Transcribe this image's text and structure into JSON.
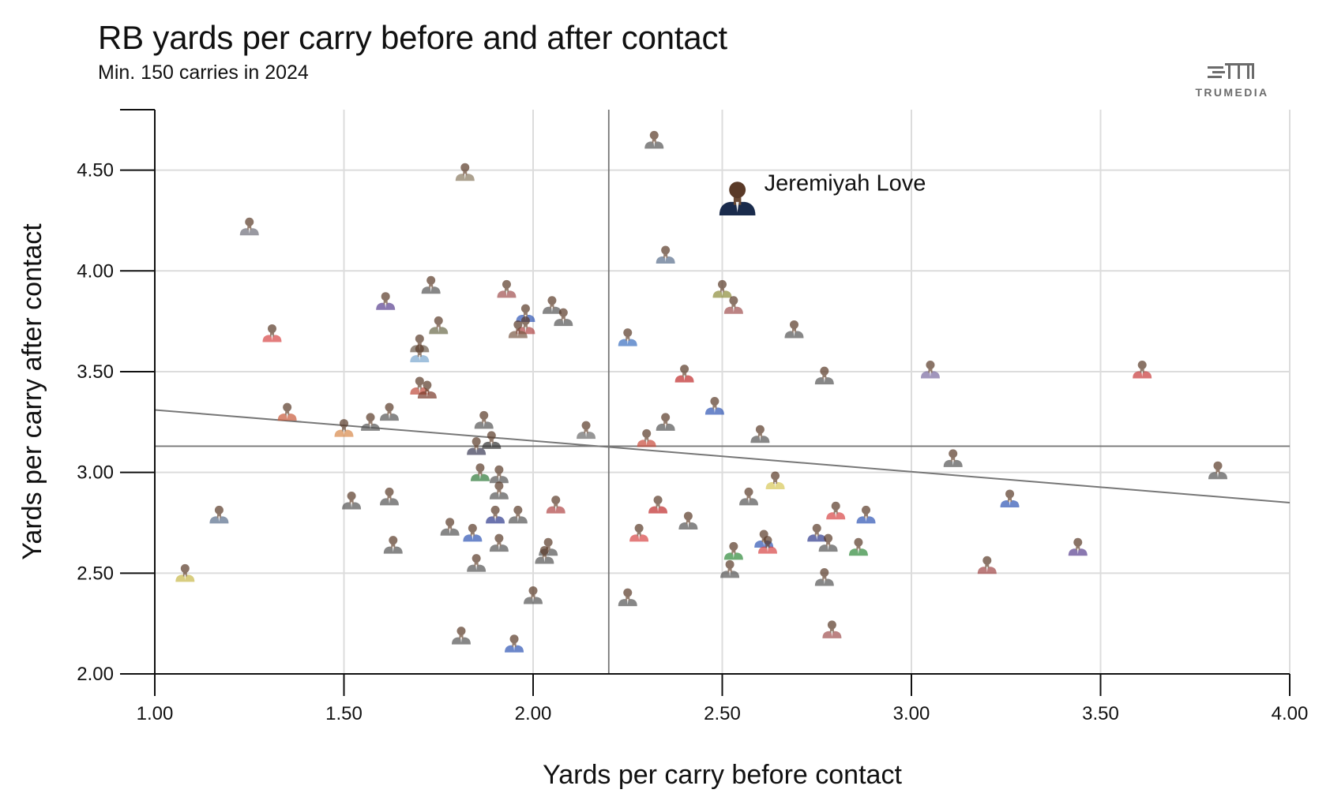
{
  "title": "RB yards per carry before and after contact",
  "subtitle": "Min. 150 carries in 2024",
  "brand": {
    "name": "TRUMEDIA",
    "logo": "trumedia-logo"
  },
  "chart_data": {
    "type": "scatter",
    "title": "RB yards per carry before and after contact",
    "subtitle": "Min. 150 carries in 2024",
    "xlabel": "Yards per carry before contact",
    "ylabel": "Yards per carry after contact",
    "xlim": [
      1.0,
      4.0
    ],
    "ylim": [
      2.0,
      4.8
    ],
    "xticks": [
      "1.00",
      "1.50",
      "2.00",
      "2.50",
      "3.00",
      "3.50",
      "4.00"
    ],
    "yticks": [
      "2.00",
      "2.50",
      "3.00",
      "3.50",
      "4.00",
      "4.50"
    ],
    "grid": true,
    "mean_lines": {
      "x": 2.2,
      "y": 3.13
    },
    "trend_line": {
      "x": [
        1.0,
        4.0
      ],
      "y": [
        3.31,
        2.85
      ]
    },
    "highlight": {
      "name": "Jeremiyah Love",
      "x": 2.54,
      "y": 4.32,
      "color": "#1a2b4c"
    },
    "marker_style": "player-headshot",
    "points": [
      {
        "x": 2.32,
        "y": 4.63,
        "color": "#555555"
      },
      {
        "x": 1.82,
        "y": 4.47,
        "color": "#8a7a60"
      },
      {
        "x": 1.25,
        "y": 4.2,
        "color": "#6f6f7a"
      },
      {
        "x": 2.35,
        "y": 4.06,
        "color": "#5a6e8c"
      },
      {
        "x": 1.73,
        "y": 3.91,
        "color": "#555555"
      },
      {
        "x": 1.93,
        "y": 3.89,
        "color": "#a05050"
      },
      {
        "x": 2.5,
        "y": 3.89,
        "color": "#8c8c3a"
      },
      {
        "x": 1.61,
        "y": 3.83,
        "color": "#5a3f8f"
      },
      {
        "x": 2.05,
        "y": 3.81,
        "color": "#555555"
      },
      {
        "x": 2.53,
        "y": 3.81,
        "color": "#a05050"
      },
      {
        "x": 1.98,
        "y": 3.77,
        "color": "#2f55b5"
      },
      {
        "x": 2.08,
        "y": 3.75,
        "color": "#555555"
      },
      {
        "x": 1.75,
        "y": 3.71,
        "color": "#6b6b4a"
      },
      {
        "x": 1.98,
        "y": 3.71,
        "color": "#b04545"
      },
      {
        "x": 1.96,
        "y": 3.69,
        "color": "#7a5a45"
      },
      {
        "x": 2.69,
        "y": 3.69,
        "color": "#555555"
      },
      {
        "x": 1.31,
        "y": 3.67,
        "color": "#d84545"
      },
      {
        "x": 2.25,
        "y": 3.65,
        "color": "#3a6fc0"
      },
      {
        "x": 1.7,
        "y": 3.62,
        "color": "#6b5a4a"
      },
      {
        "x": 1.7,
        "y": 3.57,
        "color": "#7aa8cf"
      },
      {
        "x": 2.4,
        "y": 3.47,
        "color": "#c02a2a"
      },
      {
        "x": 2.77,
        "y": 3.46,
        "color": "#555555"
      },
      {
        "x": 3.05,
        "y": 3.49,
        "color": "#7a6aa0"
      },
      {
        "x": 3.61,
        "y": 3.49,
        "color": "#c83a3a"
      },
      {
        "x": 1.7,
        "y": 3.41,
        "color": "#c04a3a"
      },
      {
        "x": 1.72,
        "y": 3.39,
        "color": "#7a3a2a"
      },
      {
        "x": 2.48,
        "y": 3.31,
        "color": "#2f55b5"
      },
      {
        "x": 1.35,
        "y": 3.28,
        "color": "#c85a3a"
      },
      {
        "x": 1.62,
        "y": 3.28,
        "color": "#555555"
      },
      {
        "x": 1.87,
        "y": 3.24,
        "color": "#555555"
      },
      {
        "x": 1.57,
        "y": 3.23,
        "color": "#555555"
      },
      {
        "x": 2.35,
        "y": 3.23,
        "color": "#555555"
      },
      {
        "x": 1.5,
        "y": 3.2,
        "color": "#d8884a"
      },
      {
        "x": 2.14,
        "y": 3.19,
        "color": "#6a6a6a"
      },
      {
        "x": 2.6,
        "y": 3.17,
        "color": "#555555"
      },
      {
        "x": 2.3,
        "y": 3.15,
        "color": "#c84a3a"
      },
      {
        "x": 1.89,
        "y": 3.14,
        "color": "#333333"
      },
      {
        "x": 1.85,
        "y": 3.11,
        "color": "#3a3a55"
      },
      {
        "x": 3.11,
        "y": 3.05,
        "color": "#555555"
      },
      {
        "x": 3.81,
        "y": 2.99,
        "color": "#555555"
      },
      {
        "x": 1.86,
        "y": 2.98,
        "color": "#2f7a3a"
      },
      {
        "x": 1.91,
        "y": 2.97,
        "color": "#555555"
      },
      {
        "x": 2.64,
        "y": 2.94,
        "color": "#d8c85a"
      },
      {
        "x": 1.91,
        "y": 2.89,
        "color": "#555555"
      },
      {
        "x": 2.57,
        "y": 2.86,
        "color": "#555555"
      },
      {
        "x": 1.62,
        "y": 2.86,
        "color": "#555555"
      },
      {
        "x": 1.52,
        "y": 2.84,
        "color": "#555555"
      },
      {
        "x": 3.26,
        "y": 2.85,
        "color": "#2f55b5"
      },
      {
        "x": 2.06,
        "y": 2.82,
        "color": "#b04545"
      },
      {
        "x": 2.33,
        "y": 2.82,
        "color": "#c02a2a"
      },
      {
        "x": 2.8,
        "y": 2.79,
        "color": "#d84545"
      },
      {
        "x": 1.17,
        "y": 2.77,
        "color": "#5a6e8c"
      },
      {
        "x": 1.9,
        "y": 2.77,
        "color": "#2f3a8c"
      },
      {
        "x": 1.96,
        "y": 2.77,
        "color": "#555555"
      },
      {
        "x": 2.88,
        "y": 2.77,
        "color": "#2f55b5"
      },
      {
        "x": 2.41,
        "y": 2.74,
        "color": "#555555"
      },
      {
        "x": 1.78,
        "y": 2.71,
        "color": "#555555"
      },
      {
        "x": 2.28,
        "y": 2.68,
        "color": "#d84545"
      },
      {
        "x": 1.84,
        "y": 2.68,
        "color": "#2f55b5"
      },
      {
        "x": 2.75,
        "y": 2.68,
        "color": "#2f3a8c"
      },
      {
        "x": 2.61,
        "y": 2.65,
        "color": "#2f55b5"
      },
      {
        "x": 1.91,
        "y": 2.63,
        "color": "#555555"
      },
      {
        "x": 2.78,
        "y": 2.63,
        "color": "#555555"
      },
      {
        "x": 2.62,
        "y": 2.62,
        "color": "#d84545"
      },
      {
        "x": 1.63,
        "y": 2.62,
        "color": "#555555"
      },
      {
        "x": 2.04,
        "y": 2.61,
        "color": "#555555"
      },
      {
        "x": 2.53,
        "y": 2.59,
        "color": "#2f8a3a"
      },
      {
        "x": 2.86,
        "y": 2.61,
        "color": "#2f8a3a"
      },
      {
        "x": 3.44,
        "y": 2.61,
        "color": "#5a3f8f"
      },
      {
        "x": 2.03,
        "y": 2.57,
        "color": "#555555"
      },
      {
        "x": 1.85,
        "y": 2.53,
        "color": "#555555"
      },
      {
        "x": 3.2,
        "y": 2.52,
        "color": "#a04545"
      },
      {
        "x": 2.52,
        "y": 2.5,
        "color": "#555555"
      },
      {
        "x": 1.08,
        "y": 2.48,
        "color": "#c8b84a"
      },
      {
        "x": 2.77,
        "y": 2.46,
        "color": "#555555"
      },
      {
        "x": 2.0,
        "y": 2.37,
        "color": "#555555"
      },
      {
        "x": 2.25,
        "y": 2.36,
        "color": "#555555"
      },
      {
        "x": 2.79,
        "y": 2.2,
        "color": "#a05050"
      },
      {
        "x": 1.81,
        "y": 2.17,
        "color": "#555555"
      },
      {
        "x": 1.95,
        "y": 2.13,
        "color": "#2f55b5"
      }
    ]
  }
}
